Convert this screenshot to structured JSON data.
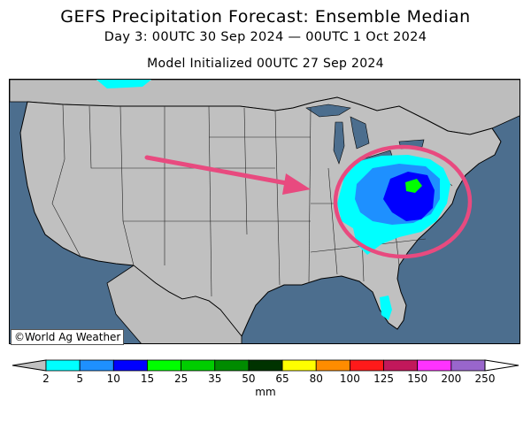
{
  "title": "GEFS Precipitation Forecast: Ensemble Median",
  "subtitle": "Day 3: 00UTC 30 Sep 2024 — 00UTC 1 Oct 2024",
  "init_line": "Model Initialized 00UTC 27 Sep 2024",
  "credit": "©World Ag Weather",
  "colorbar": {
    "units": "mm",
    "labels": [
      "2",
      "5",
      "10",
      "15",
      "25",
      "35",
      "50",
      "65",
      "80",
      "100",
      "125",
      "150",
      "200",
      "250"
    ],
    "colors": [
      "#00ffff",
      "#1e90ff",
      "#0000ff",
      "#00ff00",
      "#00cd00",
      "#008b00",
      "#003300",
      "#ffff00",
      "#ff8c00",
      "#ff1a1a",
      "#c2185b",
      "#ff33ff",
      "#9966cc"
    ]
  },
  "annotations": {
    "arrow_color": "#e84a7f",
    "circle_color": "#e84a7f"
  },
  "map_colors": {
    "ocean": "#4c6e8e",
    "land": "#c0c0c0",
    "canada": "#bdbdbd",
    "lakes": "#4c6e8e"
  }
}
